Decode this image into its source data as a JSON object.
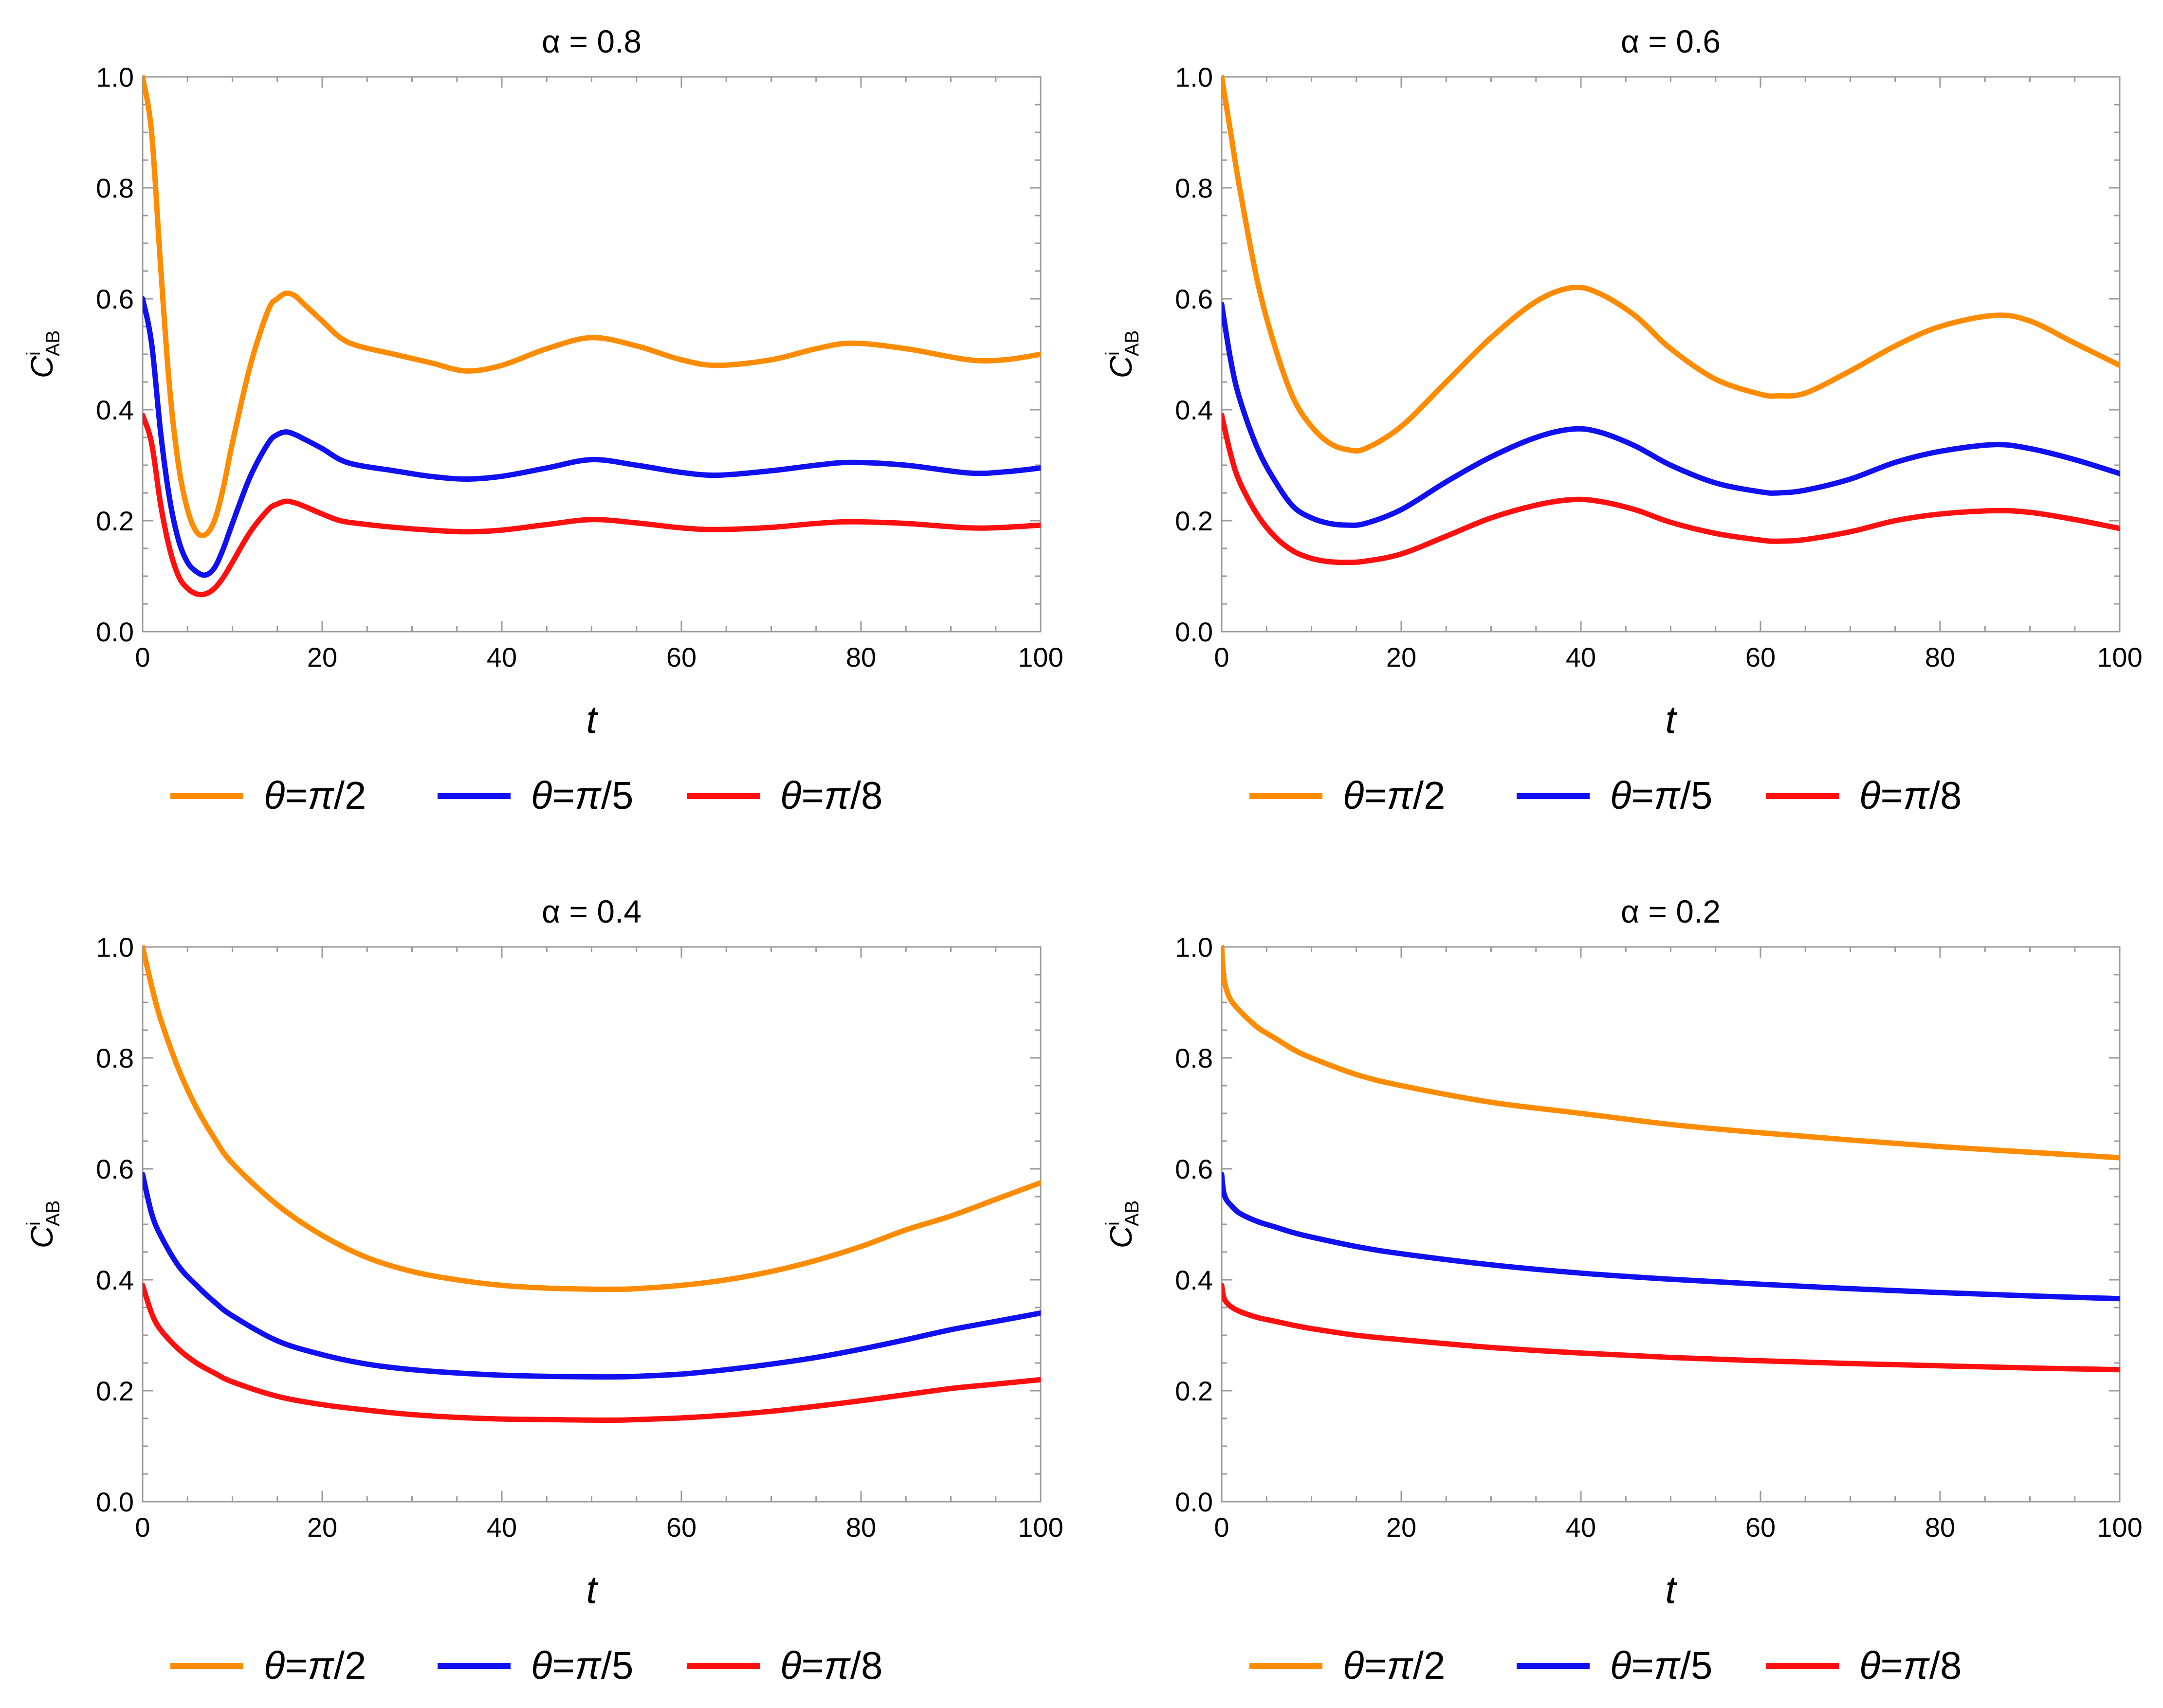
{
  "chart_data": [
    {
      "type": "line",
      "title": "α = 0.8",
      "xlabel": "t",
      "ylabel": "C",
      "ylabel_sup": "i",
      "ylabel_sub": "AB",
      "xlim": [
        0,
        100
      ],
      "ylim": [
        0,
        1
      ],
      "xticks": [
        "0",
        "20",
        "40",
        "60",
        "80",
        "100"
      ],
      "yticks": [
        "0.0",
        "0.2",
        "0.4",
        "0.6",
        "0.8",
        "1.0"
      ],
      "x": [
        0,
        1,
        2,
        3,
        4,
        5,
        6,
        7,
        8,
        9,
        10,
        12,
        14,
        15,
        16,
        17,
        18,
        20,
        22,
        24,
        28,
        32,
        36,
        40,
        45,
        50,
        55,
        60,
        64,
        70,
        75,
        79,
        85,
        92,
        96,
        100
      ],
      "series": [
        {
          "name": "θ=π/2",
          "color": "#ff8c00",
          "values": [
            1.0,
            0.9,
            0.66,
            0.44,
            0.3,
            0.22,
            0.18,
            0.175,
            0.2,
            0.26,
            0.34,
            0.48,
            0.58,
            0.6,
            0.61,
            0.605,
            0.59,
            0.56,
            0.53,
            0.515,
            0.5,
            0.485,
            0.47,
            0.48,
            0.51,
            0.53,
            0.515,
            0.49,
            0.48,
            0.49,
            0.51,
            0.52,
            0.51,
            0.49,
            0.49,
            0.5
          ]
        },
        {
          "name": "θ=π/5",
          "color": "#1010f0",
          "values": [
            0.6,
            0.52,
            0.36,
            0.24,
            0.165,
            0.125,
            0.108,
            0.102,
            0.115,
            0.15,
            0.195,
            0.28,
            0.34,
            0.355,
            0.36,
            0.355,
            0.347,
            0.33,
            0.31,
            0.3,
            0.29,
            0.28,
            0.275,
            0.28,
            0.295,
            0.31,
            0.3,
            0.287,
            0.282,
            0.29,
            0.3,
            0.305,
            0.3,
            0.286,
            0.288,
            0.295
          ]
        },
        {
          "name": "θ=π/8",
          "color": "#ff1010",
          "values": [
            0.39,
            0.34,
            0.23,
            0.15,
            0.1,
            0.078,
            0.068,
            0.068,
            0.078,
            0.098,
            0.125,
            0.18,
            0.22,
            0.23,
            0.235,
            0.232,
            0.226,
            0.212,
            0.2,
            0.195,
            0.188,
            0.183,
            0.18,
            0.183,
            0.193,
            0.202,
            0.196,
            0.187,
            0.184,
            0.188,
            0.195,
            0.198,
            0.195,
            0.187,
            0.188,
            0.192
          ]
        }
      ]
    },
    {
      "type": "line",
      "title": "α = 0.6",
      "xlabel": "t",
      "ylabel": "C",
      "ylabel_sup": "i",
      "ylabel_sub": "AB",
      "xlim": [
        0,
        100
      ],
      "ylim": [
        0,
        1
      ],
      "xticks": [
        "0",
        "20",
        "40",
        "60",
        "80",
        "100"
      ],
      "yticks": [
        "0.0",
        "0.2",
        "0.4",
        "0.6",
        "0.8",
        "1.0"
      ],
      "x": [
        0,
        1,
        2,
        4,
        6,
        8,
        10,
        12,
        14,
        16,
        20,
        25,
        30,
        35,
        39,
        42,
        46,
        50,
        55,
        60,
        62,
        65,
        70,
        75,
        80,
        86,
        90,
        95,
        100
      ],
      "series": [
        {
          "name": "θ=π/2",
          "color": "#ff8c00",
          "values": [
            1.0,
            0.9,
            0.8,
            0.63,
            0.51,
            0.42,
            0.37,
            0.34,
            0.328,
            0.33,
            0.37,
            0.45,
            0.53,
            0.595,
            0.62,
            0.61,
            0.57,
            0.51,
            0.455,
            0.428,
            0.425,
            0.43,
            0.47,
            0.515,
            0.55,
            0.57,
            0.56,
            0.52,
            0.48
          ]
        },
        {
          "name": "θ=π/5",
          "color": "#1010f0",
          "values": [
            0.59,
            0.49,
            0.42,
            0.33,
            0.27,
            0.225,
            0.205,
            0.195,
            0.192,
            0.195,
            0.22,
            0.27,
            0.315,
            0.35,
            0.365,
            0.36,
            0.335,
            0.3,
            0.268,
            0.252,
            0.25,
            0.255,
            0.275,
            0.305,
            0.325,
            0.337,
            0.33,
            0.31,
            0.285
          ]
        },
        {
          "name": "θ=π/8",
          "color": "#ff1010",
          "values": [
            0.39,
            0.32,
            0.27,
            0.21,
            0.17,
            0.145,
            0.132,
            0.126,
            0.125,
            0.127,
            0.14,
            0.172,
            0.205,
            0.228,
            0.238,
            0.235,
            0.22,
            0.197,
            0.177,
            0.165,
            0.163,
            0.166,
            0.18,
            0.2,
            0.212,
            0.218,
            0.215,
            0.202,
            0.186
          ]
        }
      ]
    },
    {
      "type": "line",
      "title": "α = 0.4",
      "xlabel": "t",
      "ylabel": "C",
      "ylabel_sup": "i",
      "ylabel_sub": "AB",
      "xlim": [
        0,
        100
      ],
      "ylim": [
        0,
        1
      ],
      "xticks": [
        "0",
        "20",
        "40",
        "60",
        "80",
        "100"
      ],
      "yticks": [
        "0.0",
        "0.2",
        "0.4",
        "0.6",
        "0.8",
        "1.0"
      ],
      "x": [
        0,
        1,
        2,
        4,
        6,
        8,
        10,
        15,
        20,
        25,
        30,
        35,
        40,
        45,
        50,
        53,
        55,
        60,
        65,
        70,
        75,
        80,
        85,
        90,
        95,
        100
      ],
      "series": [
        {
          "name": "θ=π/2",
          "color": "#ff8c00",
          "values": [
            1.0,
            0.93,
            0.87,
            0.78,
            0.71,
            0.655,
            0.61,
            0.535,
            0.48,
            0.44,
            0.415,
            0.4,
            0.39,
            0.385,
            0.383,
            0.383,
            0.384,
            0.39,
            0.4,
            0.415,
            0.435,
            0.46,
            0.49,
            0.515,
            0.545,
            0.575
          ]
        },
        {
          "name": "θ=π/5",
          "color": "#1010f0",
          "values": [
            0.59,
            0.52,
            0.48,
            0.425,
            0.39,
            0.36,
            0.335,
            0.29,
            0.265,
            0.248,
            0.238,
            0.232,
            0.228,
            0.226,
            0.225,
            0.225,
            0.226,
            0.23,
            0.238,
            0.248,
            0.26,
            0.275,
            0.292,
            0.31,
            0.325,
            0.34
          ]
        },
        {
          "name": "θ=π/8",
          "color": "#ff1010",
          "values": [
            0.39,
            0.34,
            0.31,
            0.275,
            0.25,
            0.232,
            0.216,
            0.19,
            0.175,
            0.165,
            0.157,
            0.152,
            0.149,
            0.148,
            0.147,
            0.147,
            0.148,
            0.151,
            0.156,
            0.163,
            0.172,
            0.182,
            0.193,
            0.204,
            0.212,
            0.22
          ]
        }
      ]
    },
    {
      "type": "line",
      "title": "α = 0.2",
      "xlabel": "t",
      "ylabel": "C",
      "ylabel_sup": "i",
      "ylabel_sub": "AB",
      "xlim": [
        0,
        100
      ],
      "ylim": [
        0,
        1
      ],
      "xticks": [
        "0",
        "20",
        "40",
        "60",
        "80",
        "100"
      ],
      "yticks": [
        "0.0",
        "0.2",
        "0.4",
        "0.6",
        "0.8",
        "1.0"
      ],
      "x": [
        0,
        0.2,
        0.5,
        1,
        2,
        4,
        6,
        8,
        10,
        15,
        20,
        30,
        40,
        50,
        60,
        70,
        80,
        90,
        100
      ],
      "series": [
        {
          "name": "θ=π/2",
          "color": "#ff8c00",
          "values": [
            1.0,
            0.95,
            0.925,
            0.905,
            0.885,
            0.855,
            0.835,
            0.815,
            0.8,
            0.77,
            0.75,
            0.72,
            0.7,
            0.68,
            0.665,
            0.652,
            0.64,
            0.63,
            0.62
          ]
        },
        {
          "name": "θ=π/5",
          "color": "#1010f0",
          "values": [
            0.59,
            0.56,
            0.545,
            0.535,
            0.52,
            0.505,
            0.495,
            0.485,
            0.477,
            0.46,
            0.447,
            0.427,
            0.412,
            0.401,
            0.392,
            0.384,
            0.377,
            0.371,
            0.366
          ]
        },
        {
          "name": "θ=π/8",
          "color": "#ff1010",
          "values": [
            0.39,
            0.37,
            0.36,
            0.352,
            0.343,
            0.332,
            0.325,
            0.318,
            0.312,
            0.3,
            0.292,
            0.278,
            0.268,
            0.26,
            0.254,
            0.249,
            0.245,
            0.241,
            0.238
          ]
        }
      ]
    }
  ]
}
